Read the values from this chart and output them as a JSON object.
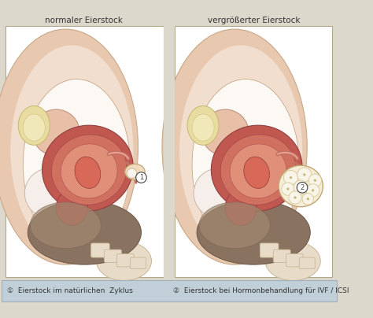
{
  "bg_color": "#ddd8cc",
  "panel_bg": "#ffffff",
  "title_left": "normaler Eierstock",
  "title_right": "vergrößerter Eierstock",
  "legend_bg": "#c0cfd8",
  "legend1": "①  Eierstock im natürlichen  Zyklus",
  "legend2": "②  Eierstock bei Hormonbehandlung für IVF / ICSI",
  "divider_color": "#999080",
  "panel_border": "#b0a888",
  "skin_light": "#f2dece",
  "skin_mid": "#e8c9b0",
  "skin_outline": "#c8a888",
  "uterus_dark": "#c05850",
  "uterus_mid": "#d07060",
  "uterus_light": "#e09078",
  "uterus_inner": "#d86858",
  "ovary_color": "#f0dcc0",
  "ovary_enlarged_color": "#f5edd8",
  "follicle_color": "#f8f4e8",
  "follicle_border": "#d8c898",
  "brown_organ": "#8a7260",
  "brown_light": "#a08870",
  "spine_color": "#e8dcc8",
  "spine_border": "#c8b898",
  "white_area": "#f8f2ec",
  "text_color": "#333333",
  "circle_bg": "#ffffff",
  "circle_border": "#444444",
  "tube_color": "#c07060",
  "tube_light": "#e8a090"
}
